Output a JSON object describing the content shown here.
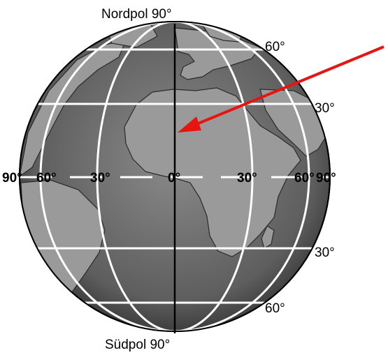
{
  "labels": {
    "north_pole": "Nordpol 90°",
    "south_pole": "Südpol 90°",
    "lat_60_north": "60°",
    "lat_30_north": "30°",
    "lat_30_south": "30°",
    "lat_60_south": "60°",
    "lon_90_west": "90°",
    "lon_60_west": "60°",
    "lon_30_west": "30°",
    "lon_0": "0°",
    "lon_30_east": "30°",
    "lon_60_east": "60°",
    "lon_90_east": "90°"
  },
  "colors": {
    "ocean": "#6b6b6b",
    "land": "#9a9a9a",
    "grid": "#ffffff",
    "meridian": "#000000",
    "arrow": "#e8140f"
  }
}
